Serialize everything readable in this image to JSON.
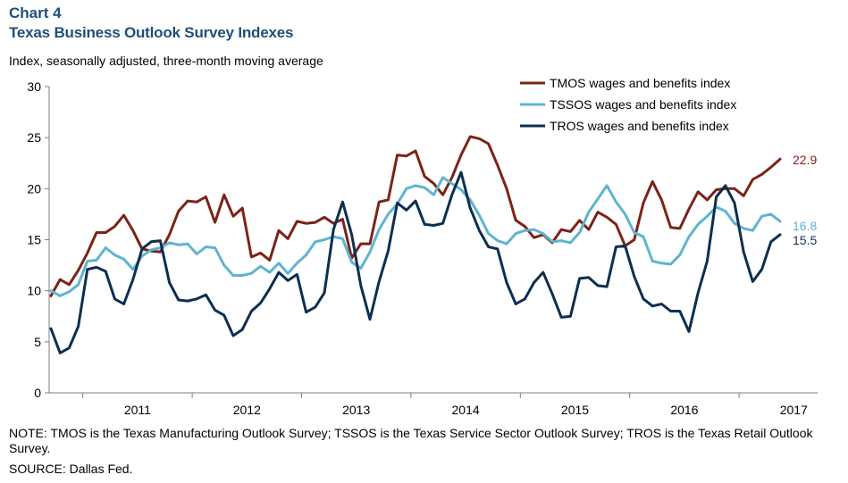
{
  "header": {
    "chart_number": "Chart 4",
    "title": "Texas Business Outlook Survey Indexes",
    "subtitle": "Index, seasonally adjusted, three-month moving average"
  },
  "footer": {
    "note": "NOTE: TMOS is the Texas Manufacturing Outlook Survey; TSSOS is the Texas Service Sector Outlook Survey; TROS is the Texas Retail Outlook Survey.",
    "source": "SOURCE: Dallas Fed."
  },
  "chart_data": {
    "type": "line",
    "x_start": "2010-09",
    "x_frequency": "monthly",
    "x_tick_labels": [
      "2011",
      "2012",
      "2013",
      "2014",
      "2015",
      "2016",
      "2017"
    ],
    "ylim": [
      0,
      30
    ],
    "y_ticks": [
      0,
      5,
      10,
      15,
      20,
      25,
      30
    ],
    "grid": false,
    "legend_position": "top-right",
    "series": [
      {
        "name": "TMOS wages and benefits index",
        "color": "#7b2318",
        "end_label": "22.9",
        "values": [
          9.5,
          11.1,
          10.6,
          12.0,
          13.7,
          15.7,
          15.7,
          16.3,
          17.4,
          15.9,
          14.1,
          13.9,
          13.8,
          15.5,
          17.8,
          18.8,
          18.7,
          19.2,
          16.7,
          19.4,
          17.3,
          18.1,
          13.3,
          13.7,
          13.0,
          15.9,
          15.1,
          16.8,
          16.6,
          16.7,
          17.2,
          16.6,
          17.0,
          13.2,
          14.6,
          14.6,
          18.7,
          18.9,
          23.3,
          23.2,
          23.7,
          21.2,
          20.5,
          19.4,
          21.1,
          23.3,
          25.1,
          24.9,
          24.4,
          22.3,
          20.0,
          16.9,
          16.3,
          15.2,
          15.5,
          14.7,
          16.0,
          15.8,
          16.9,
          16.0,
          17.7,
          17.2,
          16.5,
          14.4,
          15.0,
          18.6,
          20.7,
          18.9,
          16.2,
          16.1,
          18.0,
          19.7,
          18.9,
          19.9,
          20.0,
          20.0,
          19.3,
          20.9,
          21.4,
          22.1,
          22.9
        ]
      },
      {
        "name": "TSSOS wages and benefits index",
        "color": "#5fb4d0",
        "end_label": "16.8",
        "values": [
          10.0,
          9.5,
          9.9,
          10.6,
          12.9,
          13.0,
          14.2,
          13.5,
          13.1,
          12.1,
          13.4,
          14.0,
          14.2,
          14.7,
          14.5,
          14.6,
          13.6,
          14.3,
          14.2,
          12.5,
          11.5,
          11.5,
          11.7,
          12.4,
          11.8,
          12.7,
          11.7,
          12.7,
          13.5,
          14.8,
          15.0,
          15.3,
          15.1,
          12.8,
          12.2,
          13.8,
          16.0,
          17.5,
          18.5,
          20.0,
          20.3,
          20.1,
          19.4,
          21.1,
          20.5,
          19.9,
          18.9,
          17.4,
          15.6,
          14.9,
          14.6,
          15.6,
          15.9,
          16.0,
          15.6,
          14.8,
          14.9,
          14.7,
          15.7,
          17.7,
          19.0,
          20.3,
          18.7,
          17.5,
          15.7,
          15.3,
          12.9,
          12.7,
          12.6,
          13.5,
          15.3,
          16.5,
          17.3,
          18.2,
          17.8,
          16.6,
          16.1,
          15.9,
          17.3,
          17.5,
          16.8
        ]
      },
      {
        "name": "TROS wages and benefits index",
        "color": "#0d2f4f",
        "end_label": "15.5",
        "values": [
          6.3,
          3.9,
          4.4,
          6.5,
          12.1,
          12.3,
          11.9,
          9.2,
          8.7,
          11.1,
          14.1,
          14.8,
          14.9,
          10.8,
          9.1,
          9.0,
          9.2,
          9.6,
          8.1,
          7.6,
          5.6,
          6.2,
          8.0,
          8.8,
          10.2,
          11.8,
          11.0,
          11.6,
          7.9,
          8.4,
          9.8,
          16.0,
          18.7,
          15.5,
          10.5,
          7.2,
          10.9,
          13.9,
          18.6,
          17.9,
          18.8,
          16.5,
          16.4,
          16.6,
          19.4,
          21.6,
          18.1,
          15.9,
          14.3,
          14.1,
          10.8,
          8.7,
          9.2,
          10.8,
          11.8,
          9.7,
          7.4,
          7.5,
          11.2,
          11.3,
          10.5,
          10.4,
          14.3,
          14.4,
          11.4,
          9.2,
          8.5,
          8.7,
          8.0,
          8.0,
          6.0,
          9.8,
          12.9,
          19.2,
          20.3,
          18.6,
          13.8,
          10.9,
          12.1,
          14.8,
          15.5
        ]
      }
    ]
  }
}
